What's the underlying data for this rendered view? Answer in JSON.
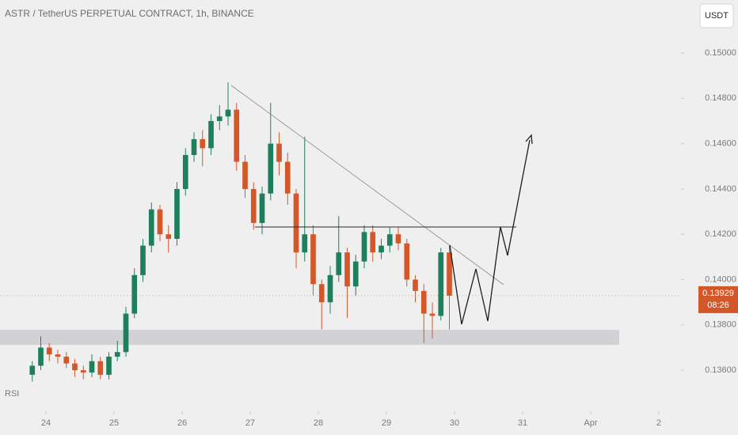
{
  "chart_data": {
    "type": "candlestick",
    "title": "ASTR / TetherUS PERPETUAL CONTRACT, 1h, BINANCE",
    "unit": "USDT",
    "indicator_label": "RSI",
    "last_price": 0.13929,
    "countdown": "08:26",
    "up_color": "#1e7f5c",
    "down_color": "#d4572a",
    "x": [
      23.8,
      23.925,
      24.05,
      24.175,
      24.3,
      24.425,
      24.55,
      24.675,
      24.8,
      24.925,
      25.05,
      25.175,
      25.3,
      25.425,
      25.55,
      25.675,
      25.8,
      25.925,
      26.05,
      26.175,
      26.3,
      26.425,
      26.55,
      26.675,
      26.8,
      26.925,
      27.05,
      27.175,
      27.3,
      27.425,
      27.55,
      27.675,
      27.8,
      27.925,
      28.05,
      28.175,
      28.3,
      28.425,
      28.55,
      28.675,
      28.8,
      28.925,
      29.05,
      29.175,
      29.3,
      29.425,
      29.55,
      29.675,
      29.8,
      29.925
    ],
    "open": [
      0.1358,
      0.1362,
      0.137,
      0.1367,
      0.1366,
      0.1363,
      0.136,
      0.1359,
      0.1364,
      0.1358,
      0.1366,
      0.1368,
      0.1385,
      0.1402,
      0.1415,
      0.1431,
      0.142,
      0.1418,
      0.144,
      0.1455,
      0.1462,
      0.1458,
      0.147,
      0.1472,
      0.1475,
      0.1452,
      0.144,
      0.1425,
      0.1438,
      0.146,
      0.1452,
      0.1438,
      0.1412,
      0.142,
      0.1398,
      0.139,
      0.1402,
      0.1412,
      0.1397,
      0.1408,
      0.1421,
      0.1412,
      0.1415,
      0.142,
      0.1416,
      0.14,
      0.1395,
      0.1385,
      0.1384,
      0.1412
    ],
    "high": [
      0.1364,
      0.1375,
      0.1372,
      0.1369,
      0.1368,
      0.1365,
      0.1362,
      0.1367,
      0.1366,
      0.1368,
      0.1373,
      0.1388,
      0.1405,
      0.1418,
      0.1434,
      0.1433,
      0.1424,
      0.1443,
      0.1458,
      0.1465,
      0.1466,
      0.1473,
      0.1477,
      0.1487,
      0.1478,
      0.1455,
      0.1443,
      0.1441,
      0.1478,
      0.1465,
      0.1456,
      0.144,
      0.1463,
      0.1424,
      0.14,
      0.1406,
      0.1428,
      0.1414,
      0.1411,
      0.1424,
      0.1424,
      0.1418,
      0.1423,
      0.1423,
      0.1418,
      0.1402,
      0.1398,
      0.139,
      0.1414,
      0.1415
    ],
    "low": [
      0.1355,
      0.136,
      0.1364,
      0.1363,
      0.1361,
      0.1357,
      0.1356,
      0.1357,
      0.1356,
      0.1356,
      0.1364,
      0.1366,
      0.1383,
      0.1399,
      0.1412,
      0.1417,
      0.1412,
      0.1415,
      0.1437,
      0.1452,
      0.145,
      0.1455,
      0.1466,
      0.1468,
      0.1448,
      0.1436,
      0.1422,
      0.142,
      0.1435,
      0.1446,
      0.1433,
      0.1405,
      0.1408,
      0.1393,
      0.1378,
      0.1385,
      0.1399,
      0.1383,
      0.1393,
      0.1405,
      0.1408,
      0.1409,
      0.1412,
      0.1413,
      0.1397,
      0.139,
      0.1372,
      0.1374,
      0.1382,
      0.1378
    ],
    "close": [
      0.1362,
      0.137,
      0.1367,
      0.1366,
      0.1363,
      0.136,
      0.1359,
      0.1364,
      0.1358,
      0.1366,
      0.1368,
      0.1385,
      0.1402,
      0.1415,
      0.1431,
      0.142,
      0.1418,
      0.144,
      0.1455,
      0.1462,
      0.1458,
      0.147,
      0.1472,
      0.1475,
      0.1452,
      0.144,
      0.1425,
      0.1438,
      0.146,
      0.1452,
      0.1438,
      0.1412,
      0.142,
      0.1398,
      0.139,
      0.1402,
      0.1412,
      0.1397,
      0.1408,
      0.1421,
      0.1412,
      0.1415,
      0.142,
      0.1416,
      0.14,
      0.1395,
      0.1385,
      0.1384,
      0.1412,
      0.13929
    ],
    "xlim": [
      23.326,
      33.326
    ],
    "xticks": [
      24,
      25,
      26,
      27,
      28,
      29,
      30,
      31,
      {
        "value": 32,
        "label": "Apr"
      },
      {
        "value": 33,
        "label": "2"
      }
    ],
    "ylim": [
      0.13419,
      0.15234
    ],
    "yticks": [
      {
        "value": 0.136,
        "label": "0.13600"
      },
      {
        "value": 0.138,
        "label": "0.13800"
      },
      {
        "value": 0.14,
        "label": "0.14000"
      },
      {
        "value": 0.142,
        "label": "0.14200"
      },
      {
        "value": 0.144,
        "label": "0.14400"
      },
      {
        "value": 0.146,
        "label": "0.14600"
      },
      {
        "value": 0.148,
        "label": "0.14800"
      },
      {
        "value": 0.15,
        "label": "0.15000"
      }
    ]
  }
}
